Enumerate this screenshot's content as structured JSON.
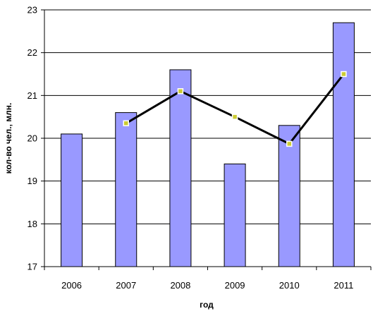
{
  "chart_data": {
    "type": "bar",
    "title": "",
    "xlabel": "год",
    "ylabel": "кол-во чел., млн.",
    "categories": [
      "2006",
      "2007",
      "2008",
      "2009",
      "2010",
      "2011"
    ],
    "ylim": [
      17,
      23
    ],
    "yticks": [
      17,
      18,
      19,
      20,
      21,
      22,
      23
    ],
    "grid": true,
    "legend": "none",
    "series": [
      {
        "type": "bar",
        "values": [
          20.1,
          20.6,
          21.6,
          19.4,
          20.3,
          22.7
        ],
        "color": "#9999ff",
        "edge_color": "#000000"
      },
      {
        "type": "line",
        "values": [
          null,
          20.35,
          21.1,
          20.5,
          19.87,
          21.5
        ],
        "color": "#000000",
        "marker_fill": "#cccc33",
        "marker_edge": "#ffffff"
      }
    ]
  }
}
